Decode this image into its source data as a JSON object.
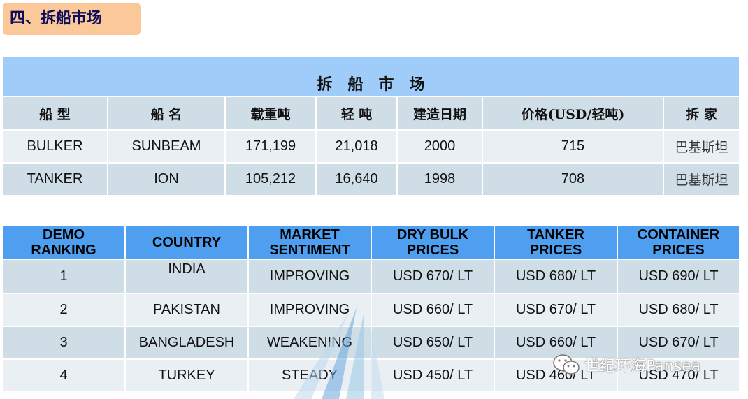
{
  "section_title": "四、拆船市场",
  "demolition_table": {
    "caption": "拆　船　市　场",
    "headers": [
      "船 型",
      "船 名",
      "载重吨",
      "轻 吨",
      "建造日期",
      "价格(USD/轻吨)",
      "拆 家"
    ],
    "rows": [
      [
        "BULKER",
        "SUNBEAM",
        "171,199",
        "21,018",
        "2000",
        "715",
        "巴基斯坦"
      ],
      [
        "TANKER",
        "ION",
        "105,212",
        "16,640",
        "1998",
        "708",
        "巴基斯坦"
      ]
    ]
  },
  "ranking_table": {
    "headers": [
      [
        "DEMO",
        "RANKING"
      ],
      [
        "COUNTRY"
      ],
      [
        "MARKET",
        "SENTIMENT"
      ],
      [
        "DRY BULK",
        "PRICES"
      ],
      [
        "TANKER",
        "PRICES"
      ],
      [
        "CONTAINER",
        "PRICES"
      ]
    ],
    "rows": [
      [
        "1",
        "INDIA",
        "IMPROVING",
        "USD 670/ LT",
        "USD 680/ LT",
        "USD 690/ LT"
      ],
      [
        "2",
        "PAKISTAN",
        "IMPROVING",
        "USD 660/ LT",
        "USD 670/ LT",
        "USD 680/ LT"
      ],
      [
        "3",
        "BANGLADESH",
        "WEAKENING",
        "USD 650/ LT",
        "USD 660/ LT",
        "USD 670/ LT"
      ],
      [
        "4",
        "TURKEY",
        "STEADY",
        "USD 450/ LT",
        "USD 460/ LT",
        "USD 470/ LT"
      ]
    ]
  },
  "watermark": {
    "text": "世纪环海Pansea",
    "icon": "wechat-icon"
  }
}
